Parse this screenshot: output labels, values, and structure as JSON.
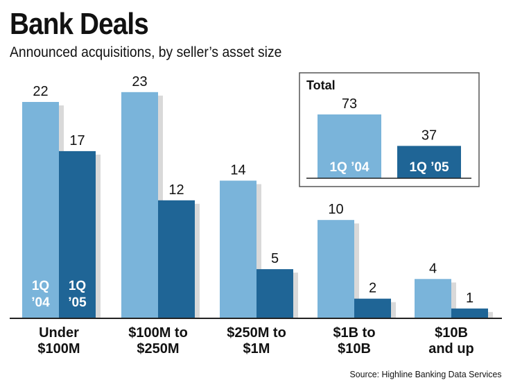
{
  "title": "Bank Deals",
  "subtitle": "Announced acquisitions, by seller’s asset size",
  "source": "Source: Highline Banking Data Services",
  "colors": {
    "q104": "#7ab4da",
    "q105": "#1f6596",
    "shadow": "#d9d9d9",
    "axis": "#222222"
  },
  "chart_data": {
    "type": "bar",
    "categories": [
      [
        "Under",
        "$100M"
      ],
      [
        "$100M to",
        "$250M"
      ],
      [
        "$250M to",
        "$1M"
      ],
      [
        "$1B to",
        "$10B"
      ],
      [
        "$10B",
        "and up"
      ]
    ],
    "series": [
      {
        "name": "1Q ’04",
        "label_lines": [
          "1Q",
          "’04"
        ],
        "values": [
          22,
          23,
          14,
          10,
          4
        ]
      },
      {
        "name": "1Q ’05",
        "label_lines": [
          "1Q",
          "’05"
        ],
        "values": [
          17,
          12,
          5,
          2,
          1
        ]
      }
    ],
    "ylim": [
      0,
      25
    ],
    "inset": {
      "title": "Total",
      "labels": [
        "1Q ’04",
        "1Q ’05"
      ],
      "values": [
        73,
        37
      ]
    }
  }
}
